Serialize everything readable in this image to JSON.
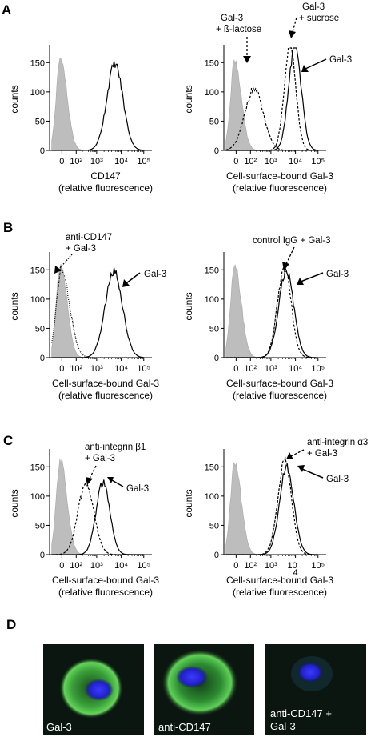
{
  "figure": {
    "panel_letters": [
      "A",
      "B",
      "C",
      "D"
    ]
  },
  "chart_data": [
    {
      "type": "line",
      "panel": "A",
      "ylabel": "counts",
      "xlabel_line1": "CD147",
      "xlabel_line2": "(relative fluorescence)",
      "yticks": [
        "0",
        "50",
        "100",
        "150"
      ],
      "xticks": [
        "0",
        "10²",
        "10³",
        "10⁴",
        "10⁵"
      ],
      "series": [
        {
          "style": "filled",
          "peak_x": -60,
          "peak_y": 158,
          "width": 70
        },
        {
          "style": "solid",
          "peak_x": 5500,
          "peak_y": 148,
          "width": 0.28
        }
      ],
      "annotations": []
    },
    {
      "type": "line",
      "panel": "A",
      "ylabel": "counts",
      "xlabel_line1": "Cell-surface-bound Gal-3",
      "xlabel_line2": "(relative fluorescence)",
      "yticks": [
        "0",
        "50",
        "100",
        "150"
      ],
      "xticks": [
        "0",
        "10²",
        "10³",
        "10⁴",
        "10⁵"
      ],
      "series": [
        {
          "style": "filled",
          "peak_x": -60,
          "peak_y": 155,
          "width": 70
        },
        {
          "style": "dashed",
          "peak_x": 150,
          "peak_y": 105,
          "width": 0.32
        },
        {
          "style": "dashed",
          "peak_x": 6000,
          "peak_y": 183,
          "width": 0.2
        },
        {
          "style": "solid",
          "peak_x": 9500,
          "peak_y": 178,
          "width": 0.22
        }
      ],
      "annotations": [
        {
          "label": "Gal-3\n+ ß-lactose",
          "style": "dashed"
        },
        {
          "label": "Gal-3\n+ sucrose",
          "style": "dashed"
        },
        {
          "label": "Gal-3",
          "style": "solid"
        }
      ]
    },
    {
      "type": "line",
      "panel": "B",
      "ylabel": "counts",
      "xlabel_line1": "Cell-surface-bound Gal-3",
      "xlabel_line2": "(relative fluorescence)",
      "yticks": [
        "0",
        "50",
        "100",
        "150"
      ],
      "xticks": [
        "0",
        "10²",
        "10³",
        "10⁴",
        "10⁵"
      ],
      "series": [
        {
          "style": "filled",
          "peak_x": -60,
          "peak_y": 160,
          "width": 70
        },
        {
          "style": "dotted",
          "peak_x": -20,
          "peak_y": 150,
          "width": 80
        },
        {
          "style": "solid",
          "peak_x": 5000,
          "peak_y": 148,
          "width": 0.3
        }
      ],
      "annotations": [
        {
          "label": "anti-CD147\n+ Gal-3",
          "style": "dotted"
        },
        {
          "label": "Gal-3",
          "style": "solid"
        }
      ]
    },
    {
      "type": "line",
      "panel": "B",
      "ylabel": "counts",
      "xlabel_line1": "Cell-surface-bound Gal-3",
      "xlabel_line2": "(relative fluorescence)",
      "yticks": [
        "0",
        "50",
        "100",
        "150"
      ],
      "xticks": [
        "0",
        "10²",
        "10³",
        "10⁴",
        "10⁵"
      ],
      "series": [
        {
          "style": "filled",
          "peak_x": -60,
          "peak_y": 160,
          "width": 70
        },
        {
          "style": "dashed",
          "peak_x": 3500,
          "peak_y": 152,
          "width": 0.24
        },
        {
          "style": "solid",
          "peak_x": 4200,
          "peak_y": 148,
          "width": 0.26
        }
      ],
      "annotations": [
        {
          "label": "control IgG + Gal-3",
          "style": "dashed"
        },
        {
          "label": "Gal-3",
          "style": "solid"
        }
      ]
    },
    {
      "type": "line",
      "panel": "C",
      "ylabel": "counts",
      "xlabel_line1": "Cell-surface-bound Gal-3",
      "xlabel_line2": "(relative fluorescence)",
      "yticks": [
        "0",
        "50",
        "100",
        "150"
      ],
      "xticks": [
        "0",
        "10²",
        "10³",
        "10⁴",
        "10⁵"
      ],
      "series": [
        {
          "style": "filled",
          "peak_x": -60,
          "peak_y": 162,
          "width": 70
        },
        {
          "style": "dashed",
          "peak_x": 300,
          "peak_y": 120,
          "width": 0.28
        },
        {
          "style": "solid",
          "peak_x": 1800,
          "peak_y": 122,
          "width": 0.24
        }
      ],
      "annotations": [
        {
          "label": "anti-integrin β1\n+ Gal-3",
          "style": "dashed"
        },
        {
          "label": "Gal-3",
          "style": "solid"
        }
      ]
    },
    {
      "type": "line",
      "panel": "C",
      "ylabel": "counts",
      "xlabel_line1": "Cell-surface-bound Gal-3",
      "xlabel_line2": "(relative fluorescence)",
      "yticks": [
        "0",
        "50",
        "100",
        "150"
      ],
      "xticks": [
        "0",
        "10²",
        "10³",
        "4",
        "10⁵"
      ],
      "xtick_extra": {
        "label": "10",
        "note": "split tick label"
      },
      "series": [
        {
          "style": "filled",
          "peak_x": -60,
          "peak_y": 158,
          "width": 70
        },
        {
          "style": "dashed",
          "peak_x": 3600,
          "peak_y": 160,
          "width": 0.24
        },
        {
          "style": "solid",
          "peak_x": 4400,
          "peak_y": 150,
          "width": 0.25
        }
      ],
      "annotations": [
        {
          "label": "anti-integrin α3\n+ Gal-3",
          "style": "dashed"
        },
        {
          "label": "Gal-3",
          "style": "solid"
        }
      ]
    }
  ],
  "micrographs": [
    {
      "label_line1": "Gal-3",
      "label_line2": ""
    },
    {
      "label_line1": "anti-CD147",
      "label_line2": ""
    },
    {
      "label_line1": "anti-CD147 +",
      "label_line2": "Gal-3"
    }
  ]
}
